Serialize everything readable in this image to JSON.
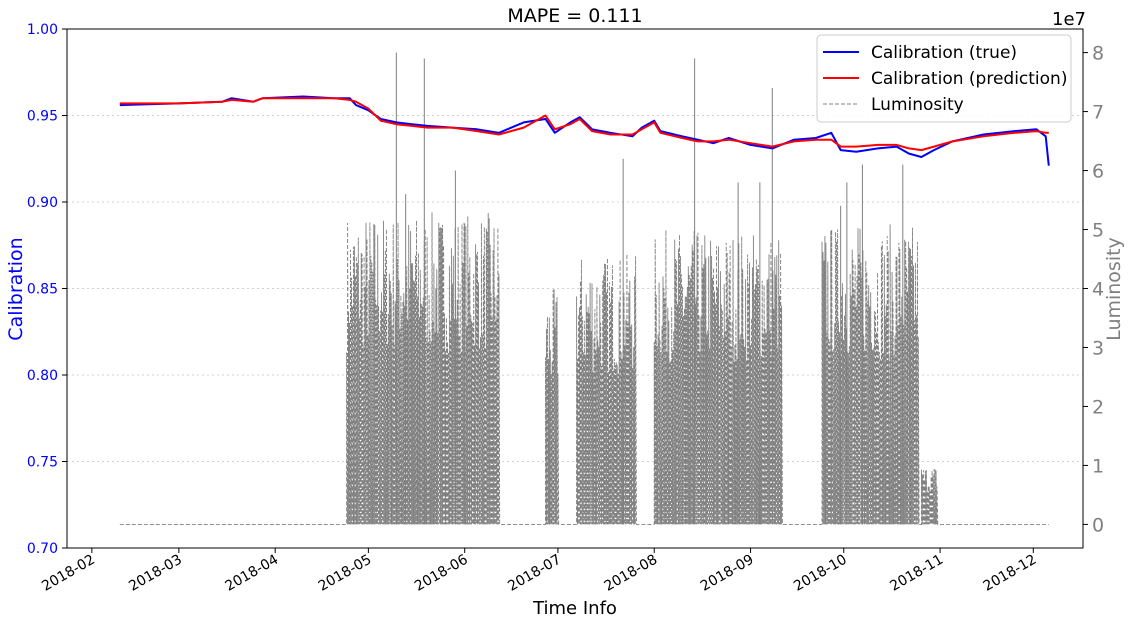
{
  "chart_data": {
    "type": "line",
    "title": "MAPE = 0.111",
    "xlabel": "Time Info",
    "ylabel_left": "Calibration",
    "ylabel_right": "Luminosity",
    "right_axis_multiplier": "1e7",
    "xlim": [
      "2018-01-24",
      "2018-12-17"
    ],
    "ylim_left": [
      0.7,
      1.0
    ],
    "ylim_right": [
      -0.4,
      8.4
    ],
    "grid": "horizontal dotted",
    "legend_position": "top-right",
    "x_ticks": [
      "2018-02",
      "2018-03",
      "2018-04",
      "2018-05",
      "2018-06",
      "2018-07",
      "2018-08",
      "2018-09",
      "2018-10",
      "2018-11",
      "2018-12"
    ],
    "y_ticks_left": [
      "0.70",
      "0.75",
      "0.80",
      "0.85",
      "0.90",
      "0.95",
      "1.00"
    ],
    "y_ticks_right": [
      "0",
      "1",
      "2",
      "3",
      "4",
      "5",
      "6",
      "7",
      "8"
    ],
    "colors": {
      "true": "#0000ff",
      "prediction": "#ff0000",
      "luminosity": "#808080",
      "left_axis": "#0000ff",
      "right_axis": "#808080"
    },
    "series": [
      {
        "name": "Calibration (true)",
        "axis": "left",
        "points": [
          [
            "2018-02-10",
            0.956
          ],
          [
            "2018-03-01",
            0.957
          ],
          [
            "2018-03-15",
            0.958
          ],
          [
            "2018-03-18",
            0.96
          ],
          [
            "2018-03-25",
            0.958
          ],
          [
            "2018-03-28",
            0.96
          ],
          [
            "2018-04-10",
            0.961
          ],
          [
            "2018-04-20",
            0.96
          ],
          [
            "2018-04-25",
            0.96
          ],
          [
            "2018-04-27",
            0.956
          ],
          [
            "2018-05-01",
            0.953
          ],
          [
            "2018-05-05",
            0.948
          ],
          [
            "2018-05-10",
            0.946
          ],
          [
            "2018-05-15",
            0.945
          ],
          [
            "2018-05-20",
            0.944
          ],
          [
            "2018-05-28",
            0.943
          ],
          [
            "2018-06-05",
            0.942
          ],
          [
            "2018-06-12",
            0.94
          ],
          [
            "2018-06-20",
            0.946
          ],
          [
            "2018-06-27",
            0.948
          ],
          [
            "2018-06-30",
            0.94
          ],
          [
            "2018-07-05",
            0.946
          ],
          [
            "2018-07-08",
            0.949
          ],
          [
            "2018-07-12",
            0.942
          ],
          [
            "2018-07-18",
            0.94
          ],
          [
            "2018-07-25",
            0.938
          ],
          [
            "2018-07-28",
            0.943
          ],
          [
            "2018-08-01",
            0.947
          ],
          [
            "2018-08-03",
            0.941
          ],
          [
            "2018-08-10",
            0.938
          ],
          [
            "2018-08-15",
            0.936
          ],
          [
            "2018-08-20",
            0.934
          ],
          [
            "2018-08-25",
            0.937
          ],
          [
            "2018-09-01",
            0.933
          ],
          [
            "2018-09-08",
            0.931
          ],
          [
            "2018-09-15",
            0.936
          ],
          [
            "2018-09-22",
            0.937
          ],
          [
            "2018-09-27",
            0.94
          ],
          [
            "2018-09-30",
            0.93
          ],
          [
            "2018-10-05",
            0.929
          ],
          [
            "2018-10-12",
            0.931
          ],
          [
            "2018-10-18",
            0.932
          ],
          [
            "2018-10-22",
            0.928
          ],
          [
            "2018-10-26",
            0.926
          ],
          [
            "2018-10-30",
            0.93
          ],
          [
            "2018-11-05",
            0.935
          ],
          [
            "2018-11-15",
            0.939
          ],
          [
            "2018-11-25",
            0.941
          ],
          [
            "2018-12-02",
            0.942
          ],
          [
            "2018-12-05",
            0.938
          ],
          [
            "2018-12-06",
            0.921
          ]
        ]
      },
      {
        "name": "Calibration (prediction)",
        "axis": "left",
        "points": [
          [
            "2018-02-10",
            0.957
          ],
          [
            "2018-03-01",
            0.957
          ],
          [
            "2018-03-15",
            0.958
          ],
          [
            "2018-03-18",
            0.959
          ],
          [
            "2018-03-25",
            0.958
          ],
          [
            "2018-03-28",
            0.96
          ],
          [
            "2018-04-10",
            0.96
          ],
          [
            "2018-04-20",
            0.96
          ],
          [
            "2018-04-25",
            0.959
          ],
          [
            "2018-04-27",
            0.958
          ],
          [
            "2018-05-01",
            0.954
          ],
          [
            "2018-05-05",
            0.947
          ],
          [
            "2018-05-10",
            0.945
          ],
          [
            "2018-05-15",
            0.944
          ],
          [
            "2018-05-20",
            0.943
          ],
          [
            "2018-05-28",
            0.943
          ],
          [
            "2018-06-05",
            0.941
          ],
          [
            "2018-06-12",
            0.939
          ],
          [
            "2018-06-20",
            0.943
          ],
          [
            "2018-06-27",
            0.95
          ],
          [
            "2018-06-30",
            0.942
          ],
          [
            "2018-07-05",
            0.945
          ],
          [
            "2018-07-08",
            0.948
          ],
          [
            "2018-07-12",
            0.941
          ],
          [
            "2018-07-18",
            0.939
          ],
          [
            "2018-07-25",
            0.939
          ],
          [
            "2018-07-28",
            0.942
          ],
          [
            "2018-08-01",
            0.946
          ],
          [
            "2018-08-03",
            0.94
          ],
          [
            "2018-08-10",
            0.937
          ],
          [
            "2018-08-15",
            0.935
          ],
          [
            "2018-08-20",
            0.935
          ],
          [
            "2018-08-25",
            0.936
          ],
          [
            "2018-09-01",
            0.934
          ],
          [
            "2018-09-08",
            0.932
          ],
          [
            "2018-09-15",
            0.935
          ],
          [
            "2018-09-22",
            0.936
          ],
          [
            "2018-09-27",
            0.936
          ],
          [
            "2018-09-30",
            0.932
          ],
          [
            "2018-10-05",
            0.932
          ],
          [
            "2018-10-12",
            0.933
          ],
          [
            "2018-10-18",
            0.933
          ],
          [
            "2018-10-22",
            0.931
          ],
          [
            "2018-10-26",
            0.93
          ],
          [
            "2018-10-30",
            0.932
          ],
          [
            "2018-11-05",
            0.935
          ],
          [
            "2018-11-15",
            0.938
          ],
          [
            "2018-11-25",
            0.94
          ],
          [
            "2018-12-02",
            0.941
          ],
          [
            "2018-12-05",
            0.94
          ],
          [
            "2018-12-06",
            0.94
          ]
        ]
      },
      {
        "name": "Luminosity",
        "axis": "right",
        "style": "dashed",
        "baseline": 0,
        "active_periods": [
          {
            "start": "2018-04-24",
            "end": "2018-06-12",
            "peak": 5.3
          },
          {
            "start": "2018-06-27",
            "end": "2018-07-01",
            "peak": 4.0
          },
          {
            "start": "2018-07-07",
            "end": "2018-07-26",
            "peak": 4.6
          },
          {
            "start": "2018-08-01",
            "end": "2018-09-11",
            "peak": 5.0
          },
          {
            "start": "2018-09-24",
            "end": "2018-10-25",
            "peak": 5.1
          },
          {
            "start": "2018-10-26",
            "end": "2018-10-31",
            "peak": 1.0
          }
        ],
        "spikes": [
          [
            "2018-05-10",
            8.0
          ],
          [
            "2018-05-19",
            7.9
          ],
          [
            "2018-05-13",
            5.6
          ],
          [
            "2018-05-29",
            6.0
          ],
          [
            "2018-06-01",
            5.1
          ],
          [
            "2018-07-22",
            6.2
          ],
          [
            "2018-08-14",
            7.9
          ],
          [
            "2018-08-28",
            5.8
          ],
          [
            "2018-09-04",
            5.8
          ],
          [
            "2018-09-08",
            7.4
          ],
          [
            "2018-10-07",
            6.1
          ],
          [
            "2018-10-20",
            6.1
          ],
          [
            "2018-09-30",
            5.4
          ],
          [
            "2018-10-02",
            5.8
          ]
        ]
      }
    ]
  }
}
